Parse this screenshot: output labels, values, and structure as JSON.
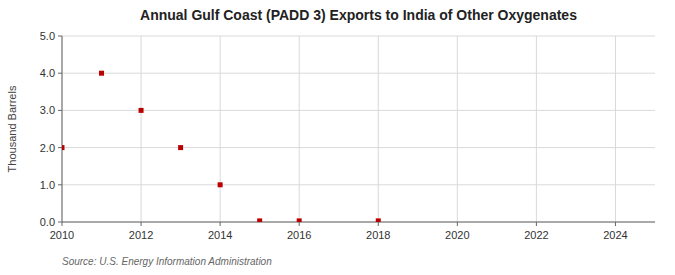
{
  "chart_data": {
    "type": "scatter",
    "title": "Annual Gulf Coast (PADD 3) Exports to India of Other Oxygenates",
    "y_label": "Thousand Barrels",
    "annotations": [
      "Source: U.S. Energy Information Administration"
    ],
    "x": [
      2010,
      2011,
      2012,
      2013,
      2014,
      2015,
      2016,
      2018
    ],
    "values": [
      2.0,
      4.0,
      3.0,
      2.0,
      1.0,
      0.03,
      0.03,
      0.03
    ],
    "color": "#bb0000",
    "marker": "square",
    "xlim": [
      2010,
      2025
    ],
    "ylim": [
      0.0,
      5.0
    ],
    "xticks": [
      2010,
      2012,
      2014,
      2016,
      2018,
      2020,
      2022,
      2024
    ],
    "yticks": [
      {
        "value": 0.0,
        "label": "0.0"
      },
      {
        "value": 1.0,
        "label": "1.0"
      },
      {
        "value": 2.0,
        "label": "2.0"
      },
      {
        "value": 3.0,
        "label": "3.0"
      },
      {
        "value": 4.0,
        "label": "4.0"
      },
      {
        "value": 5.0,
        "label": "5.0"
      }
    ],
    "grid": true
  }
}
